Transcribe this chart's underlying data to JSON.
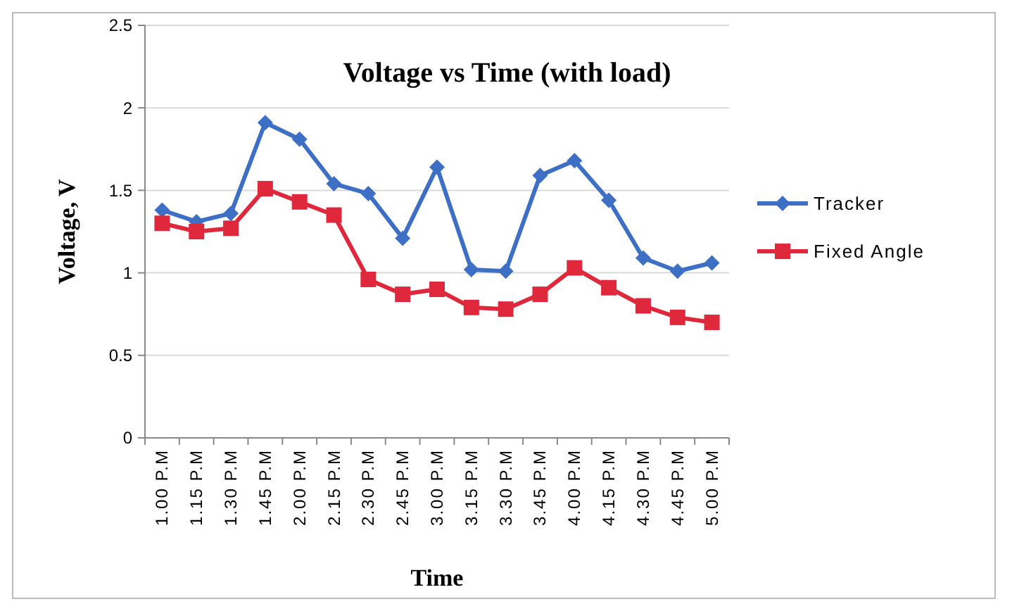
{
  "chart_data": {
    "type": "line",
    "title": "Voltage vs Time (with load)",
    "xlabel": "Time",
    "ylabel": "Voltage, V",
    "categories": [
      "1.00 P.M",
      "1.15 P.M",
      "1.30 P.M",
      "1.45 P.M",
      "2.00 P.M",
      "2.15 P.M",
      "2.30 P.M",
      "2.45 P.M",
      "3.00 P.M",
      "3.15 P.M",
      "3.30 P.M",
      "3.45 P.M",
      "4.00 P.M",
      "4.15 P.M",
      "4.30 P.M",
      "4.45 P.M",
      "5.00 P.M"
    ],
    "series": [
      {
        "name": "Tracker",
        "color": "#3d6fc4",
        "marker": "diamond",
        "values": [
          1.38,
          1.31,
          1.36,
          1.91,
          1.81,
          1.54,
          1.48,
          1.21,
          1.64,
          1.02,
          1.01,
          1.59,
          1.68,
          1.44,
          1.09,
          1.01,
          1.06
        ]
      },
      {
        "name": "Fixed Angle",
        "color": "#e0283c",
        "marker": "square",
        "values": [
          1.3,
          1.25,
          1.27,
          1.51,
          1.43,
          1.35,
          0.96,
          0.87,
          0.9,
          0.79,
          0.78,
          0.87,
          1.03,
          0.91,
          0.8,
          0.73,
          0.7
        ]
      }
    ],
    "ylim": [
      0,
      2.5
    ],
    "yticks": [
      0,
      0.5,
      1,
      1.5,
      2,
      2.5
    ],
    "grid": "y",
    "legend": "right",
    "line_style": "solid"
  }
}
